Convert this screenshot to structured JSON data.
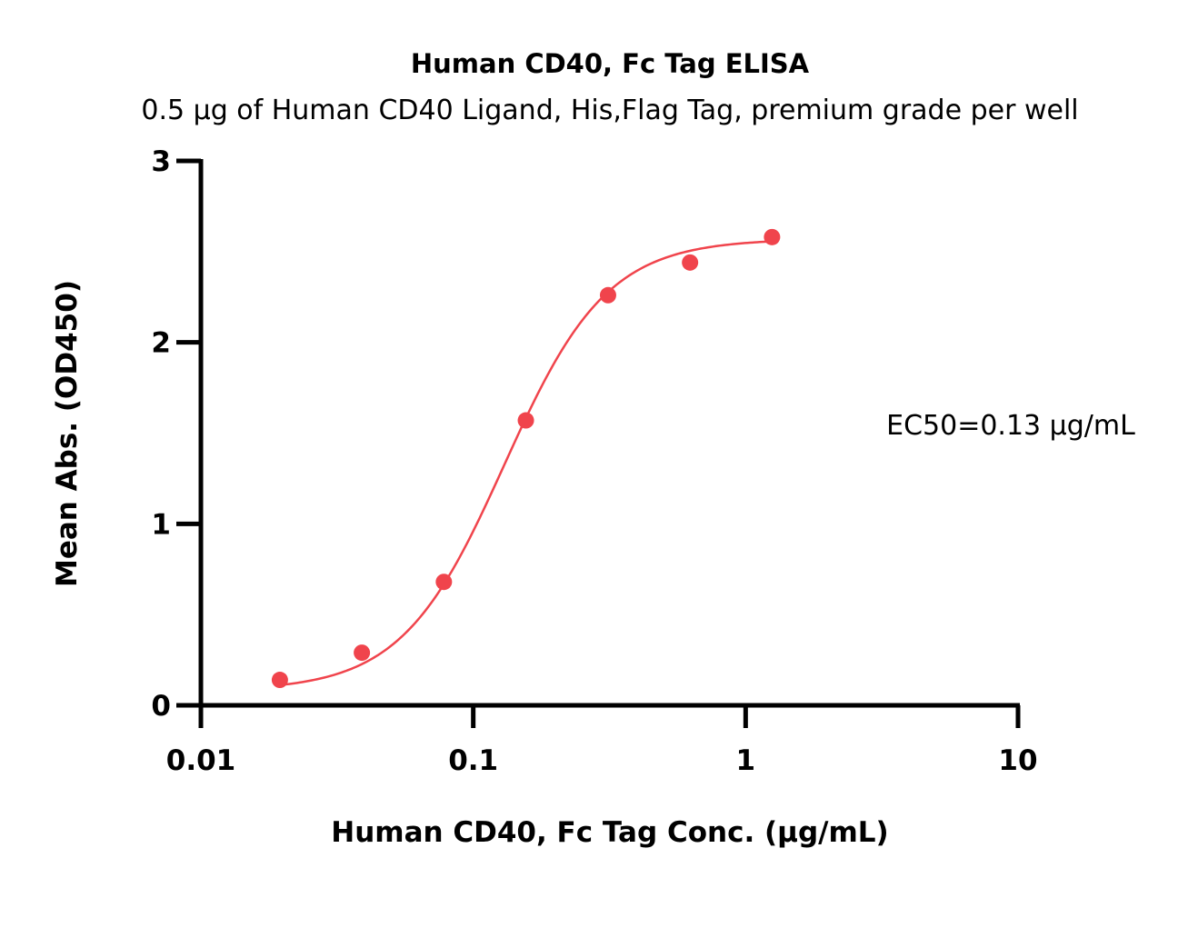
{
  "chart_data": {
    "type": "scatter",
    "title": "Human CD40, Fc Tag ELISA",
    "subtitle": "0.5 μg of Human CD40 Ligand, His,Flag Tag, premium grade per well",
    "xlabel": "Human CD40, Fc Tag Conc. (μg/mL)",
    "ylabel": "Mean Abs. (OD450)",
    "x_scale": "log",
    "xlim": [
      0.01,
      10
    ],
    "ylim": [
      0,
      3
    ],
    "x_ticks": [
      {
        "value": 0.01,
        "label": "0.01"
      },
      {
        "value": 0.1,
        "label": "0.1"
      },
      {
        "value": 1,
        "label": "1"
      },
      {
        "value": 10,
        "label": "10"
      }
    ],
    "y_ticks": [
      {
        "value": 0,
        "label": "0"
      },
      {
        "value": 1,
        "label": "1"
      },
      {
        "value": 2,
        "label": "2"
      },
      {
        "value": 3,
        "label": "3"
      }
    ],
    "series": [
      {
        "color": "#f0444c",
        "points": [
          {
            "x": 0.0195,
            "y": 0.14
          },
          {
            "x": 0.039,
            "y": 0.29
          },
          {
            "x": 0.078,
            "y": 0.68
          },
          {
            "x": 0.156,
            "y": 1.57
          },
          {
            "x": 0.3125,
            "y": 2.26
          },
          {
            "x": 0.625,
            "y": 2.44
          },
          {
            "x": 1.25,
            "y": 2.58
          }
        ],
        "fit": {
          "type": "4PL",
          "bottom": 0.08,
          "top": 2.57,
          "ec50": 0.13,
          "hill": 2.3,
          "x_from": 0.0195,
          "x_to": 1.25
        }
      }
    ],
    "annotations": [
      {
        "text": "EC50=0.13 μg/mL"
      }
    ],
    "grid": false,
    "legend": "none"
  }
}
